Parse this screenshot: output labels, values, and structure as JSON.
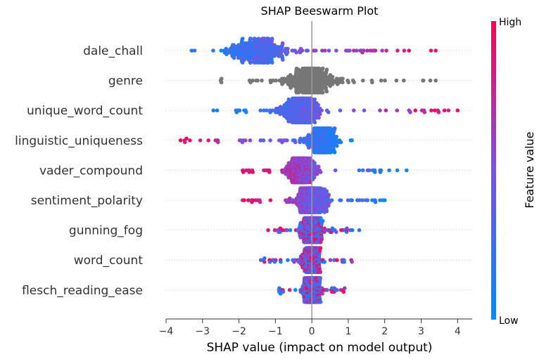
{
  "chart_data": {
    "type": "scatter",
    "subtype": "shap-beeswarm",
    "title": "SHAP Beeswarm Plot",
    "xlabel": "SHAP value (impact on model output)",
    "ylabel": "",
    "xlim": [
      -4,
      4.4
    ],
    "xticks": [
      -4,
      -3,
      -2,
      -1,
      0,
      1,
      2,
      3,
      4
    ],
    "xtick_labels": [
      "−4",
      "−3",
      "−2",
      "−1",
      "0",
      "1",
      "2",
      "3",
      "4"
    ],
    "grid": false,
    "colorbar": {
      "label": "Feature value",
      "high_label": "High",
      "low_label": "Low",
      "low_color": "#008bfb",
      "high_color": "#ff0052"
    },
    "neutral_color": "#777777",
    "features": [
      {
        "name": "dale_chall",
        "min": -3.3,
        "max": 3.4,
        "center": -1.5,
        "spread": 1.1,
        "trend": "positive",
        "colored": true
      },
      {
        "name": "genre",
        "min": -2.5,
        "max": 3.4,
        "center": 0.0,
        "spread": 0.9,
        "trend": "none",
        "colored": false
      },
      {
        "name": "unique_word_count",
        "min": -2.7,
        "max": 4.0,
        "center": -0.3,
        "spread": 0.7,
        "trend": "positive",
        "colored": true
      },
      {
        "name": "linguistic_uniqueness",
        "min": -3.6,
        "max": 1.1,
        "center": 0.3,
        "spread": 0.5,
        "trend": "negative",
        "colored": true
      },
      {
        "name": "vader_compound",
        "min": -1.9,
        "max": 2.6,
        "center": -0.3,
        "spread": 0.5,
        "trend": "negative",
        "colored": true
      },
      {
        "name": "sentiment_polarity",
        "min": -1.9,
        "max": 2.0,
        "center": 0.0,
        "spread": 0.6,
        "trend": "negative",
        "colored": true
      },
      {
        "name": "gunning_fog",
        "min": -1.2,
        "max": 1.3,
        "center": 0.0,
        "spread": 0.4,
        "trend": "mixed",
        "colored": true
      },
      {
        "name": "word_count",
        "min": -1.4,
        "max": 1.1,
        "center": 0.0,
        "spread": 0.35,
        "trend": "mixed",
        "colored": true
      },
      {
        "name": "flesch_reading_ease",
        "min": -0.9,
        "max": 0.9,
        "center": 0.0,
        "spread": 0.3,
        "trend": "mixed",
        "colored": true
      }
    ]
  }
}
